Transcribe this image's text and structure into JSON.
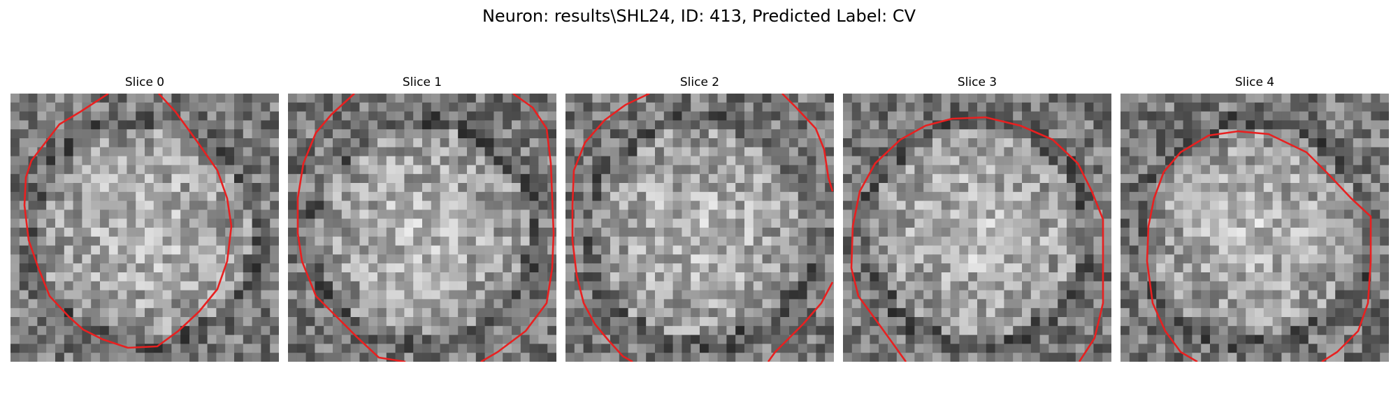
{
  "figure": {
    "title": "Neuron: results\\SHL24, ID: 413, Predicted Label: CV"
  },
  "panels": [
    {
      "title": "Slice 0",
      "seed": 11,
      "contour": [
        [
          140,
          0
        ],
        [
          100,
          26
        ],
        [
          70,
          44
        ],
        [
          50,
          70
        ],
        [
          30,
          96
        ],
        [
          22,
          120
        ],
        [
          20,
          160
        ],
        [
          26,
          210
        ],
        [
          40,
          250
        ],
        [
          56,
          290
        ],
        [
          84,
          320
        ],
        [
          104,
          338
        ],
        [
          132,
          352
        ],
        [
          168,
          364
        ],
        [
          210,
          362
        ],
        [
          240,
          340
        ],
        [
          270,
          312
        ],
        [
          296,
          280
        ],
        [
          310,
          240
        ],
        [
          316,
          190
        ],
        [
          310,
          150
        ],
        [
          296,
          110
        ],
        [
          268,
          70
        ],
        [
          236,
          26
        ],
        [
          212,
          0
        ]
      ],
      "bright": [
        150,
        210,
        120
      ]
    },
    {
      "title": "Slice 1",
      "seed": 27,
      "contour": [
        [
          95,
          0
        ],
        [
          62,
          30
        ],
        [
          40,
          56
        ],
        [
          22,
          100
        ],
        [
          14,
          150
        ],
        [
          14,
          200
        ],
        [
          20,
          240
        ],
        [
          40,
          290
        ],
        [
          70,
          320
        ],
        [
          100,
          350
        ],
        [
          130,
          378
        ],
        [
          168,
          384
        ]
      ],
      "contour2": [
        [
          322,
          0
        ],
        [
          350,
          20
        ],
        [
          370,
          50
        ],
        [
          376,
          100
        ],
        [
          378,
          150
        ],
        [
          380,
          200
        ],
        [
          378,
          250
        ],
        [
          370,
          300
        ],
        [
          340,
          340
        ],
        [
          300,
          370
        ],
        [
          276,
          384
        ]
      ],
      "bright": [
        190,
        200,
        140
      ]
    },
    {
      "title": "Slice 2",
      "seed": 43,
      "contour": [
        [
          120,
          0
        ],
        [
          86,
          16
        ],
        [
          56,
          38
        ],
        [
          28,
          70
        ],
        [
          12,
          110
        ],
        [
          10,
          160
        ],
        [
          10,
          210
        ],
        [
          16,
          260
        ],
        [
          26,
          300
        ],
        [
          42,
          330
        ],
        [
          62,
          354
        ],
        [
          82,
          376
        ],
        [
          96,
          384
        ]
      ],
      "contour2": [
        [
          310,
          0
        ],
        [
          330,
          20
        ],
        [
          358,
          50
        ],
        [
          370,
          80
        ],
        [
          376,
          120
        ],
        [
          382,
          140
        ]
      ],
      "contour3": [
        [
          382,
          270
        ],
        [
          366,
          300
        ],
        [
          340,
          330
        ],
        [
          300,
          370
        ],
        [
          290,
          384
        ]
      ],
      "bright": [
        190,
        190,
        150
      ]
    },
    {
      "title": "Slice 3",
      "seed": 59,
      "contour": [
        [
          90,
          384
        ],
        [
          70,
          356
        ],
        [
          44,
          320
        ],
        [
          22,
          290
        ],
        [
          12,
          250
        ],
        [
          14,
          190
        ],
        [
          24,
          140
        ],
        [
          46,
          100
        ],
        [
          82,
          66
        ],
        [
          118,
          46
        ],
        [
          156,
          36
        ],
        [
          204,
          34
        ],
        [
          254,
          46
        ],
        [
          300,
          66
        ],
        [
          336,
          100
        ],
        [
          356,
          140
        ],
        [
          372,
          180
        ],
        [
          372,
          240
        ],
        [
          372,
          300
        ],
        [
          360,
          350
        ],
        [
          338,
          384
        ]
      ],
      "bright": [
        190,
        210,
        110
      ]
    },
    {
      "title": "Slice 4",
      "seed": 71,
      "contour": [
        [
          110,
          384
        ],
        [
          86,
          370
        ],
        [
          64,
          340
        ],
        [
          46,
          300
        ],
        [
          38,
          240
        ],
        [
          40,
          190
        ],
        [
          48,
          150
        ],
        [
          62,
          112
        ],
        [
          86,
          84
        ],
        [
          126,
          60
        ],
        [
          168,
          54
        ],
        [
          212,
          58
        ],
        [
          266,
          84
        ],
        [
          298,
          116
        ],
        [
          330,
          150
        ],
        [
          358,
          176
        ],
        [
          358,
          240
        ],
        [
          354,
          300
        ],
        [
          340,
          340
        ],
        [
          310,
          370
        ],
        [
          288,
          384
        ]
      ],
      "bright": [
        196,
        220,
        130
      ]
    }
  ],
  "colors": {
    "contour": "#e82020"
  }
}
